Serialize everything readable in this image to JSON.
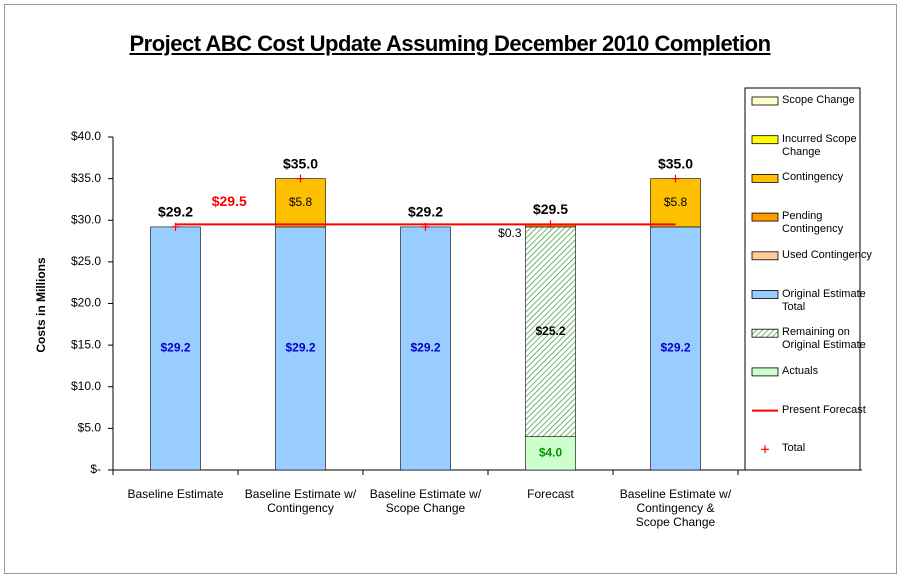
{
  "chart_data": {
    "type": "stacked-bar",
    "title": "Project ABC Cost Update Assuming December 2010 Completion",
    "y_label": "Costs in Millions",
    "categories": [
      "Baseline Estimate",
      "Baseline Estimate w/ Contingency",
      "Baseline Estimate w/ Scope Change",
      "Forecast",
      "Baseline Estimate w/ Contingency & Scope Change"
    ],
    "ylim": [
      0,
      40
    ],
    "yticks": [
      {
        "value": 0,
        "label": "$-"
      },
      {
        "value": 5,
        "label": "$5.0"
      },
      {
        "value": 10,
        "label": "$10.0"
      },
      {
        "value": 15,
        "label": "$15.0"
      },
      {
        "value": 20,
        "label": "$20.0"
      },
      {
        "value": 25,
        "label": "$25.0"
      },
      {
        "value": 30,
        "label": "$30.0"
      },
      {
        "value": 35,
        "label": "$35.0"
      },
      {
        "value": 40,
        "label": "$40.0"
      }
    ],
    "legend_position": "right",
    "series": [
      {
        "name": "Scope Change",
        "color": "#ffffcc",
        "values": [
          null,
          null,
          null,
          null,
          null
        ]
      },
      {
        "name": "Incurred Scope Change",
        "color": "#ffff00",
        "values": [
          null,
          null,
          null,
          null,
          null
        ]
      },
      {
        "name": "Contingency",
        "color": "#ffc000",
        "values": [
          null,
          5.8,
          null,
          null,
          5.8
        ],
        "value_labels": [
          null,
          "$5.8",
          null,
          null,
          "$5.8"
        ]
      },
      {
        "name": "Pending Contingency",
        "color": "#ff9900",
        "values": [
          null,
          null,
          null,
          0.3,
          null
        ],
        "value_labels": [
          null,
          null,
          null,
          "$0.3",
          null
        ]
      },
      {
        "name": "Used Contingency",
        "color": "#ffcc99",
        "values": [
          null,
          null,
          null,
          null,
          null
        ]
      },
      {
        "name": "Original Estimate Total",
        "color": "#99ccff",
        "values": [
          29.2,
          29.2,
          29.2,
          null,
          29.2
        ],
        "value_labels": [
          "$29.2",
          "$29.2",
          "$29.2",
          null,
          "$29.2"
        ]
      },
      {
        "name": "Remaining on Original Estimate",
        "color": "#339933",
        "pattern": "diagonal-hatch",
        "values": [
          null,
          null,
          null,
          25.2,
          null
        ],
        "value_labels": [
          null,
          null,
          null,
          "$25.2",
          null
        ]
      },
      {
        "name": "Actuals",
        "color": "#ccffcc",
        "values": [
          null,
          null,
          null,
          4.0,
          null
        ],
        "value_labels": [
          null,
          null,
          null,
          "$4.0",
          null
        ]
      }
    ],
    "present_forecast": {
      "name": "Present Forecast",
      "color": "#ff0000",
      "value": 29.5,
      "value_label": "$29.5"
    },
    "total": {
      "name": "Total",
      "color": "#ff0000",
      "values": [
        29.2,
        35.0,
        29.2,
        29.5,
        35.0
      ],
      "value_labels": [
        "$29.2",
        "$35.0",
        "$29.2",
        "$29.5",
        "$35.0"
      ]
    }
  }
}
